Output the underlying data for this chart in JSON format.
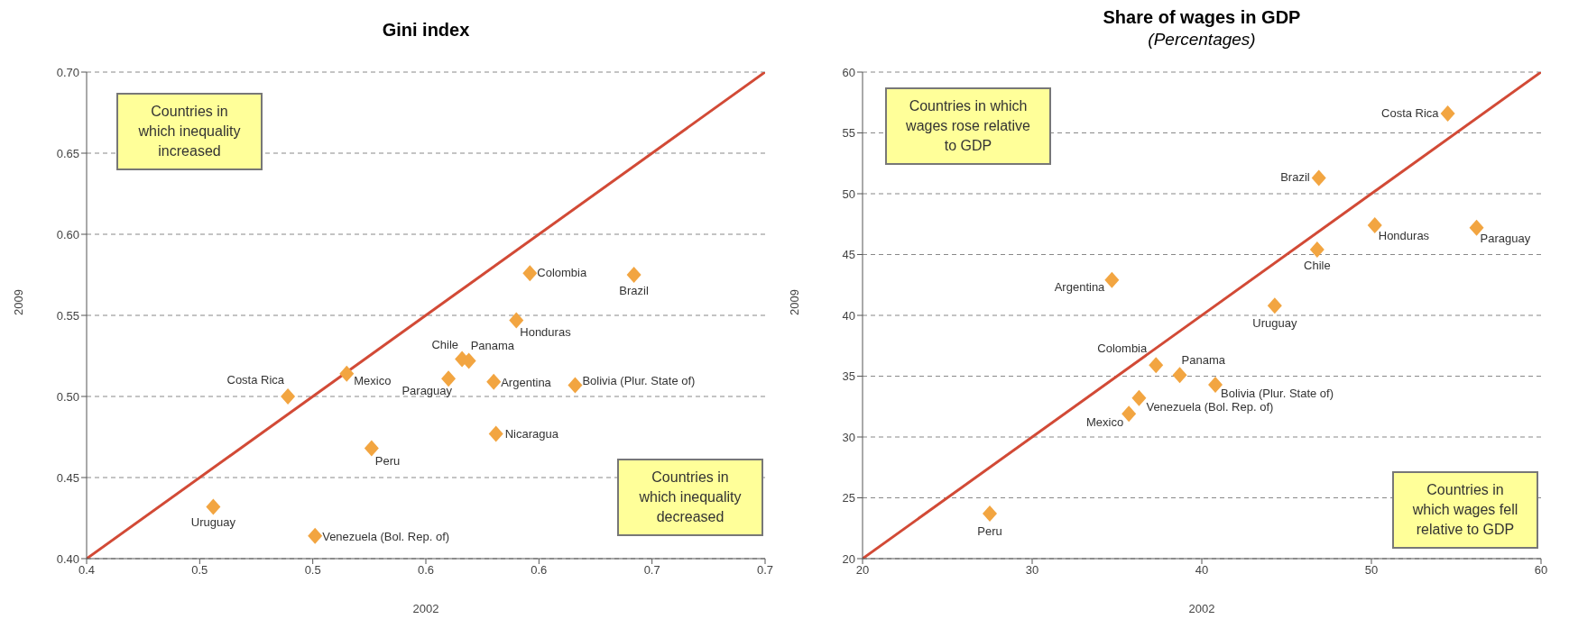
{
  "chart_data": [
    {
      "type": "scatter",
      "title": "Gini index",
      "xlabel": "2002",
      "ylabel": "2009",
      "grid": "y",
      "xlim": [
        0.4,
        0.7
      ],
      "ylim": [
        0.4,
        0.7
      ],
      "xticks": [
        {
          "value": 0.4,
          "label": "0.4"
        },
        {
          "value": 0.45,
          "label": "0.5"
        },
        {
          "value": 0.5,
          "label": "0.5"
        },
        {
          "value": 0.55,
          "label": "0.6"
        },
        {
          "value": 0.6,
          "label": "0.6"
        },
        {
          "value": 0.65,
          "label": "0.7"
        },
        {
          "value": 0.7,
          "label": "0.7"
        }
      ],
      "yticks": [
        {
          "value": 0.4,
          "label": "0.40"
        },
        {
          "value": 0.45,
          "label": "0.45"
        },
        {
          "value": 0.5,
          "label": "0.50"
        },
        {
          "value": 0.55,
          "label": "0.55"
        },
        {
          "value": 0.6,
          "label": "0.60"
        },
        {
          "value": 0.65,
          "label": "0.65"
        },
        {
          "value": 0.7,
          "label": "0.70"
        }
      ],
      "series": [
        {
          "type": "line",
          "marker": "none",
          "color": "#d24a36",
          "x": [
            0.4,
            0.7
          ],
          "values": [
            0.4,
            0.7
          ]
        },
        {
          "marker": "diamond",
          "color": "#f2a541",
          "x": [
            0.489,
            0.515,
            0.566,
            0.569,
            0.56,
            0.58,
            0.616,
            0.581,
            0.526,
            0.456,
            0.501,
            0.596,
            0.642,
            0.59
          ],
          "values": [
            0.5,
            0.514,
            0.523,
            0.522,
            0.511,
            0.509,
            0.507,
            0.477,
            0.468,
            0.432,
            0.414,
            0.576,
            0.575,
            0.547
          ]
        }
      ],
      "annotations": [
        "Countries in which inequality increased",
        "Countries in which inequality decreased",
        {
          "text": "Costa Rica",
          "x": 0.489,
          "y": 0.5
        },
        {
          "text": "Mexico",
          "x": 0.515,
          "y": 0.514
        },
        {
          "text": "Chile",
          "x": 0.566,
          "y": 0.523
        },
        {
          "text": "Panama",
          "x": 0.569,
          "y": 0.522
        },
        {
          "text": "Paraguay",
          "x": 0.56,
          "y": 0.511
        },
        {
          "text": "Argentina",
          "x": 0.58,
          "y": 0.509
        },
        {
          "text": "Bolivia (Plur. State of)",
          "x": 0.616,
          "y": 0.507
        },
        {
          "text": "Nicaragua",
          "x": 0.581,
          "y": 0.477
        },
        {
          "text": "Peru",
          "x": 0.526,
          "y": 0.468
        },
        {
          "text": "Uruguay",
          "x": 0.456,
          "y": 0.432
        },
        {
          "text": "Venezuela (Bol. Rep. of)",
          "x": 0.501,
          "y": 0.414
        },
        {
          "text": "Colombia",
          "x": 0.596,
          "y": 0.576
        },
        {
          "text": "Brazil",
          "x": 0.642,
          "y": 0.575
        },
        {
          "text": "Honduras",
          "x": 0.59,
          "y": 0.547
        }
      ]
    },
    {
      "type": "scatter",
      "title": "Share of wages in GDP",
      "subtitle": "(Percentages)",
      "xlabel": "2002",
      "ylabel": "2009",
      "grid": "y",
      "xlim": [
        20,
        60
      ],
      "ylim": [
        20,
        60
      ],
      "xticks": [
        20,
        30,
        40,
        50,
        60
      ],
      "yticks": [
        20,
        25,
        30,
        35,
        40,
        45,
        50,
        55,
        60
      ],
      "series": [
        {
          "type": "line",
          "marker": "none",
          "color": "#d24a36",
          "x": [
            20,
            60
          ],
          "values": [
            20,
            60
          ]
        },
        {
          "marker": "diamond",
          "color": "#f2a541",
          "x": [
            54.5,
            46.9,
            50.2,
            56.2,
            46.8,
            34.7,
            44.3,
            37.3,
            38.7,
            40.8,
            36.3,
            35.7,
            27.5
          ],
          "values": [
            56.6,
            51.3,
            47.4,
            47.2,
            45.4,
            42.9,
            40.8,
            35.9,
            35.1,
            34.3,
            33.2,
            31.9,
            23.7
          ]
        }
      ],
      "annotations": [
        "Countries in which wages rose relative to GDP",
        "Countries in which wages fell relative to GDP",
        {
          "text": "Costa Rica",
          "x": 54.5,
          "y": 56.6
        },
        {
          "text": "Brazil",
          "x": 46.9,
          "y": 51.3
        },
        {
          "text": "Honduras",
          "x": 50.2,
          "y": 47.4
        },
        {
          "text": "Paraguay",
          "x": 56.2,
          "y": 47.2
        },
        {
          "text": "Chile",
          "x": 46.8,
          "y": 45.4
        },
        {
          "text": "Argentina",
          "x": 34.7,
          "y": 42.9
        },
        {
          "text": "Uruguay",
          "x": 44.3,
          "y": 40.8
        },
        {
          "text": "Colombia",
          "x": 37.3,
          "y": 35.9
        },
        {
          "text": "Panama",
          "x": 38.7,
          "y": 35.1
        },
        {
          "text": "Bolivia (Plur. State of)",
          "x": 40.8,
          "y": 34.3
        },
        {
          "text": "Venezuela (Bol. Rep. of)",
          "x": 36.3,
          "y": 33.2
        },
        {
          "text": "Mexico",
          "x": 35.7,
          "y": 31.9
        },
        {
          "text": "Peru",
          "x": 27.5,
          "y": 23.7
        }
      ]
    }
  ]
}
